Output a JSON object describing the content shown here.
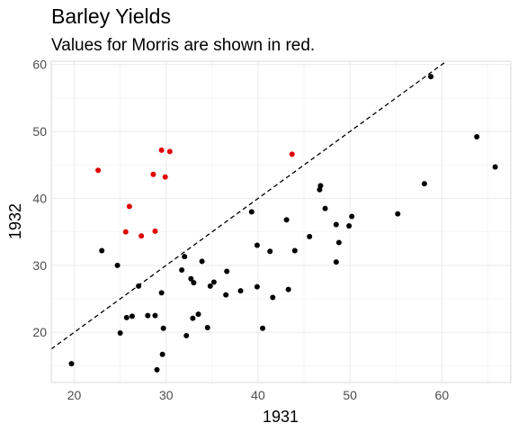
{
  "colors": {
    "default_point": "#000000",
    "highlight_point": "#e00000",
    "grid_major": "#ebebeb",
    "grid_minor": "#f4f4f4",
    "panel_border": "#d9d9d9",
    "reference_line": "#000000"
  },
  "chart_data": {
    "type": "scatter",
    "title": "Barley Yields",
    "subtitle": "Values for Morris are shown in red.",
    "xlabel": "1931",
    "ylabel": "1932",
    "xlim": [
      17.5,
      67.5
    ],
    "ylim": [
      12.5,
      60.5
    ],
    "x_ticks": [
      20,
      30,
      40,
      50,
      60
    ],
    "y_ticks": [
      20,
      30,
      40,
      50,
      60
    ],
    "x_tick_labels": [
      "20",
      "30",
      "40",
      "50",
      "60"
    ],
    "y_tick_labels": [
      "20",
      "30",
      "40",
      "50",
      "60"
    ],
    "grid": true,
    "reference_line": {
      "slope": 1,
      "intercept": 0,
      "style": "dashed"
    },
    "series": [
      {
        "color": "#000000",
        "points": [
          [
            19.7,
            15.3
          ],
          [
            23.0,
            32.2
          ],
          [
            24.7,
            30.0
          ],
          [
            25.0,
            19.9
          ],
          [
            25.7,
            22.2
          ],
          [
            26.3,
            22.4
          ],
          [
            27.0,
            26.9
          ],
          [
            28.0,
            22.5
          ],
          [
            28.8,
            22.5
          ],
          [
            29.0,
            14.4
          ],
          [
            29.5,
            25.9
          ],
          [
            29.6,
            16.7
          ],
          [
            29.7,
            20.6
          ],
          [
            31.7,
            29.3
          ],
          [
            32.0,
            31.3
          ],
          [
            32.2,
            19.5
          ],
          [
            32.7,
            28.0
          ],
          [
            33.0,
            27.4
          ],
          [
            32.9,
            22.1
          ],
          [
            33.5,
            22.7
          ],
          [
            33.9,
            30.6
          ],
          [
            34.5,
            20.7
          ],
          [
            34.8,
            26.9
          ],
          [
            35.2,
            27.5
          ],
          [
            36.5,
            25.6
          ],
          [
            36.6,
            29.1
          ],
          [
            38.1,
            26.2
          ],
          [
            39.3,
            38.0
          ],
          [
            39.9,
            33.0
          ],
          [
            39.9,
            26.8
          ],
          [
            40.5,
            20.6
          ],
          [
            41.3,
            32.1
          ],
          [
            41.6,
            25.2
          ],
          [
            43.1,
            36.8
          ],
          [
            43.3,
            26.4
          ],
          [
            44.0,
            32.2
          ],
          [
            45.6,
            34.3
          ],
          [
            46.7,
            41.3
          ],
          [
            46.8,
            41.9
          ],
          [
            47.3,
            38.5
          ],
          [
            48.5,
            36.1
          ],
          [
            48.5,
            30.5
          ],
          [
            48.8,
            33.4
          ],
          [
            49.9,
            35.9
          ],
          [
            50.2,
            37.3
          ],
          [
            55.2,
            37.7
          ],
          [
            58.1,
            42.2
          ],
          [
            58.8,
            58.2
          ],
          [
            63.8,
            49.2
          ],
          [
            65.8,
            44.7
          ]
        ]
      },
      {
        "color": "#e00000",
        "points": [
          [
            22.6,
            44.2
          ],
          [
            25.6,
            35.0
          ],
          [
            26.0,
            38.8
          ],
          [
            27.3,
            34.4
          ],
          [
            28.6,
            43.6
          ],
          [
            28.8,
            35.1
          ],
          [
            29.5,
            47.2
          ],
          [
            29.9,
            43.2
          ],
          [
            30.4,
            47.0
          ],
          [
            43.7,
            46.6
          ]
        ]
      }
    ]
  }
}
